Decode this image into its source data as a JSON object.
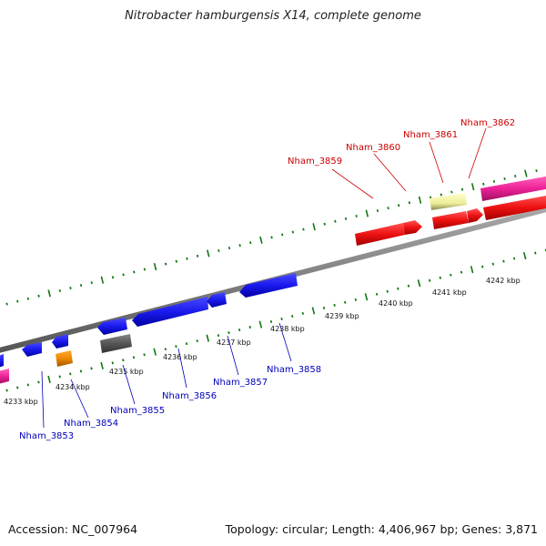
{
  "title": "Nitrobacter hamburgensis X14, complete genome",
  "footer": {
    "accession": "Accession: NC_007964",
    "summary": "Topology: circular; Length: 4,406,967 bp; Genes: 3,871"
  },
  "ruler": {
    "unit": "kbp",
    "ticks": [
      {
        "kbp": 4233,
        "label": "4233 kbp"
      },
      {
        "kbp": 4234,
        "label": "4234 kbp"
      },
      {
        "kbp": 4235,
        "label": "4235 kbp"
      },
      {
        "kbp": 4236,
        "label": "4236 kbp"
      },
      {
        "kbp": 4237,
        "label": "4237 kbp"
      },
      {
        "kbp": 4238,
        "label": "4238 kbp"
      },
      {
        "kbp": 4239,
        "label": "4239 kbp"
      },
      {
        "kbp": 4240,
        "label": "4240 kbp"
      },
      {
        "kbp": 4241,
        "label": "4241 kbp"
      },
      {
        "kbp": 4242,
        "label": "4242 kbp"
      }
    ]
  },
  "colors": {
    "blue_gene": "#1a1aee",
    "red_gene": "#ee1111",
    "magenta_gene": "#ee2299",
    "orange_gene": "#ee8800",
    "gray_gene": "#555555",
    "yellow_gene": "#eeee99",
    "backbone": "#808080",
    "tick": "#117711",
    "label_blue": "#0000bb",
    "label_red": "#cc0000"
  },
  "genes": [
    {
      "name": "Nham_3853",
      "strand": "reverse",
      "color": "blue"
    },
    {
      "name": "Nham_3854",
      "strand": "reverse",
      "color": "orange"
    },
    {
      "name": "Nham_3855",
      "strand": "reverse",
      "color": "gray"
    },
    {
      "name": "Nham_3856",
      "strand": "reverse",
      "color": "blue"
    },
    {
      "name": "Nham_3857",
      "strand": "reverse",
      "color": "blue"
    },
    {
      "name": "Nham_3858",
      "strand": "reverse",
      "color": "blue"
    },
    {
      "name": "Nham_3859",
      "strand": "forward",
      "color": "red"
    },
    {
      "name": "Nham_3860",
      "strand": "forward",
      "color": "red"
    },
    {
      "name": "Nham_3861",
      "strand": "forward",
      "color": "yellow"
    },
    {
      "name": "Nham_3862",
      "strand": "forward",
      "color": "magenta"
    }
  ]
}
